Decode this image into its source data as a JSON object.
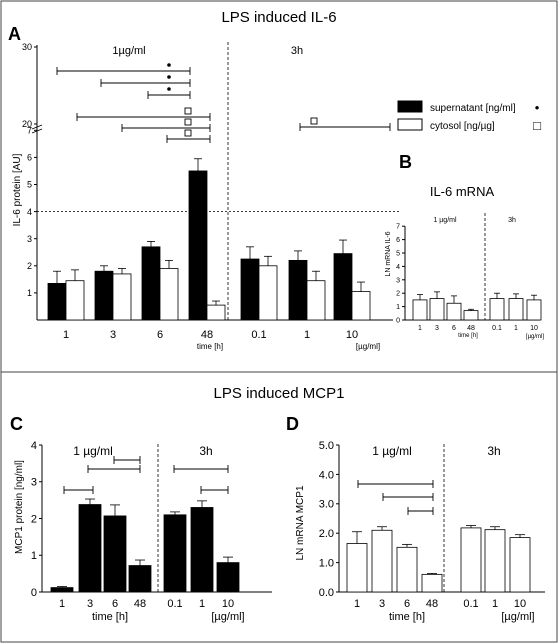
{
  "panel_top": {
    "title": "LPS induced IL-6"
  },
  "panel_bottom": {
    "title": "LPS induced MCP1"
  },
  "chart_data": [
    {
      "id": "A",
      "type": "bar",
      "letter": "A",
      "ylabel": "IL-6 protein [AU]",
      "xlabel": "time [h]",
      "xlabel_right": "[µg/ml]",
      "group_labels": [
        "1µg/ml",
        "3h"
      ],
      "categories": [
        "1",
        "3",
        "6",
        "48",
        "0.1",
        "1",
        "10"
      ],
      "yticks": [
        "1",
        "2",
        "3",
        "4",
        "5",
        "6",
        "7"
      ],
      "upper_ticks": [
        "20",
        "30"
      ],
      "ylim": [
        0,
        7
      ],
      "reference_line": 4,
      "series": [
        {
          "name": "supernatant [ng/ml]",
          "symbol": "•",
          "fill": "#000000",
          "values": [
            1.35,
            1.8,
            2.7,
            5.5,
            2.25,
            2.2,
            2.45
          ],
          "errors": [
            0.45,
            0.2,
            0.2,
            0.45,
            0.45,
            0.35,
            0.5
          ]
        },
        {
          "name": "cytosol [ng/µg]",
          "symbol": "□",
          "fill": "#ffffff",
          "values": [
            1.45,
            1.7,
            1.9,
            0.55,
            2.0,
            1.45,
            1.05
          ],
          "errors": [
            0.4,
            0.2,
            0.3,
            0.15,
            0.35,
            0.35,
            0.35
          ]
        }
      ]
    },
    {
      "id": "B",
      "type": "bar",
      "letter": "B",
      "title": "IL-6 mRNA",
      "ylabel": "LN mRNA IL-6",
      "xlabel": "time [h]",
      "xlabel_right": "[µg/ml]",
      "group_labels": [
        "1 µg/ml",
        "3h"
      ],
      "categories": [
        "1",
        "3",
        "6",
        "48",
        "0.1",
        "1",
        "10"
      ],
      "yticks": [
        "0",
        "1",
        "2",
        "3",
        "4",
        "5",
        "6",
        "7"
      ],
      "ylim": [
        0,
        7
      ],
      "series": [
        {
          "values": [
            1.5,
            1.6,
            1.25,
            0.7,
            1.6,
            1.6,
            1.5
          ],
          "errors": [
            0.4,
            0.5,
            0.55,
            0.1,
            0.4,
            0.35,
            0.35
          ]
        }
      ]
    },
    {
      "id": "C",
      "type": "bar",
      "letter": "C",
      "ylabel": "MCP1 protein [ng/ml]",
      "xlabel": "time [h]",
      "xlabel_right": "[µg/ml]",
      "group_labels": [
        "1 µg/ml",
        "3h"
      ],
      "categories": [
        "1",
        "3",
        "6",
        "48",
        "0.1",
        "1",
        "10"
      ],
      "yticks": [
        "0",
        "1",
        "2",
        "3",
        "4"
      ],
      "ylim": [
        0,
        4
      ],
      "series": [
        {
          "values": [
            0.12,
            2.38,
            2.07,
            0.72,
            2.1,
            2.3,
            0.8
          ],
          "errors": [
            0.03,
            0.15,
            0.3,
            0.15,
            0.08,
            0.18,
            0.15
          ]
        }
      ]
    },
    {
      "id": "D",
      "type": "bar",
      "letter": "D",
      "ylabel": "LN mRNA MCP1",
      "xlabel": "time [h]",
      "xlabel_right": "[µg/ml]",
      "group_labels": [
        "1 µg/ml",
        "3h"
      ],
      "categories": [
        "1",
        "3",
        "6",
        "48",
        "0.1",
        "1",
        "10"
      ],
      "yticks": [
        "0.0",
        "1.0",
        "2.0",
        "3.0",
        "4.0",
        "5.0"
      ],
      "ylim": [
        0,
        5
      ],
      "series": [
        {
          "values": [
            1.65,
            2.1,
            1.52,
            0.6,
            2.18,
            2.12,
            1.85
          ],
          "errors": [
            0.4,
            0.12,
            0.1,
            0.03,
            0.08,
            0.1,
            0.1
          ]
        }
      ]
    }
  ]
}
